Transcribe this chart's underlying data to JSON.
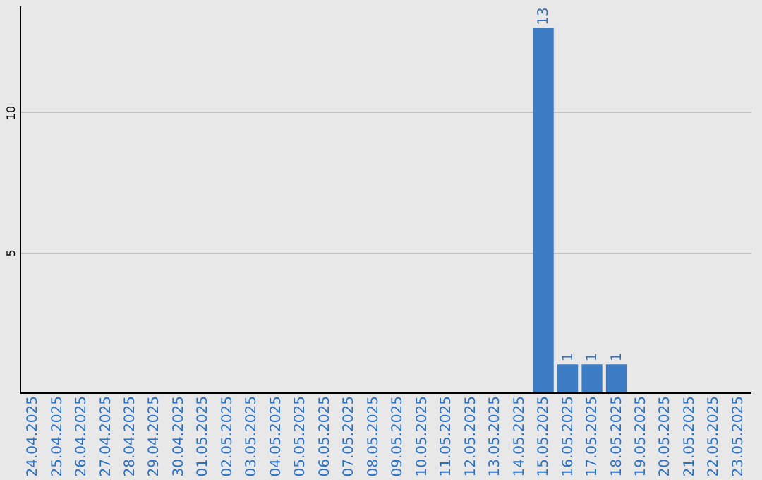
{
  "chart_data": {
    "type": "bar",
    "categories": [
      "24.04.2025",
      "25.04.2025",
      "26.04.2025",
      "27.04.2025",
      "28.04.2025",
      "29.04.2025",
      "30.04.2025",
      "01.05.2025",
      "02.05.2025",
      "03.05.2025",
      "04.05.2025",
      "05.05.2025",
      "06.05.2025",
      "07.05.2025",
      "08.05.2025",
      "09.05.2025",
      "10.05.2025",
      "11.05.2025",
      "12.05.2025",
      "13.05.2025",
      "14.05.2025",
      "15.05.2025",
      "16.05.2025",
      "17.05.2025",
      "18.05.2025",
      "19.05.2025",
      "20.05.2025",
      "21.05.2025",
      "22.05.2025",
      "23.05.2025"
    ],
    "values": [
      0,
      0,
      0,
      0,
      0,
      0,
      0,
      0,
      0,
      0,
      0,
      0,
      0,
      0,
      0,
      0,
      0,
      0,
      0,
      0,
      0,
      13,
      1,
      1,
      1,
      0,
      0,
      0,
      0,
      0
    ],
    "value_labels": [
      null,
      null,
      null,
      null,
      null,
      null,
      null,
      null,
      null,
      null,
      null,
      null,
      null,
      null,
      null,
      null,
      null,
      null,
      null,
      null,
      null,
      "13",
      "1",
      "1",
      "1",
      null,
      null,
      null,
      null,
      null
    ],
    "color": "#3b7cc4",
    "ylim": [
      0,
      13.8
    ],
    "yticks": [
      5,
      10
    ],
    "grid": "y"
  }
}
